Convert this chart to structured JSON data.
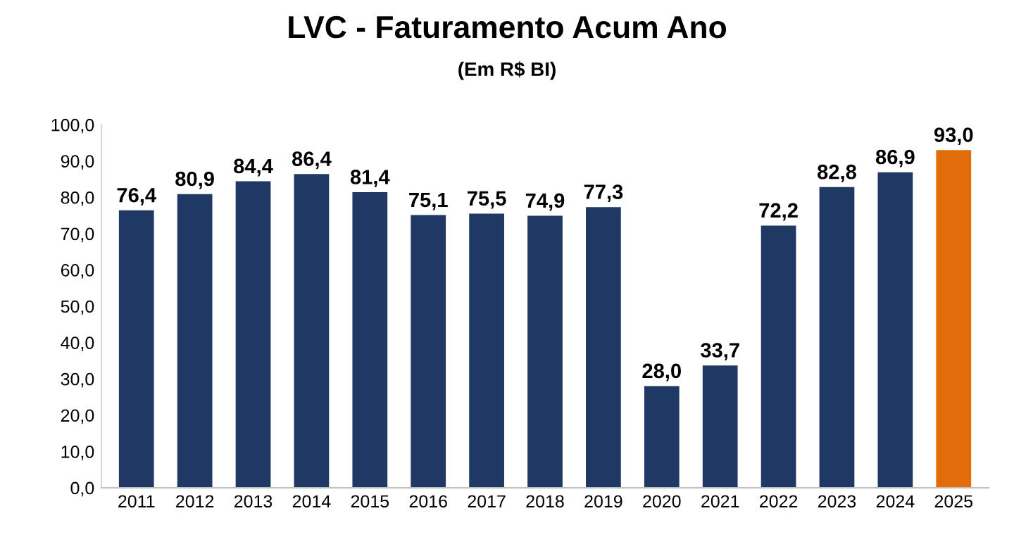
{
  "chart_data": {
    "type": "bar",
    "title": "LVC - Faturamento Acum Ano",
    "subtitle": "(Em R$ BI)",
    "categories": [
      "2011",
      "2012",
      "2013",
      "2014",
      "2015",
      "2016",
      "2017",
      "2018",
      "2019",
      "2020",
      "2021",
      "2022",
      "2023",
      "2024",
      "2025"
    ],
    "values": [
      76.4,
      80.9,
      84.4,
      86.4,
      81.4,
      75.1,
      75.5,
      74.9,
      77.3,
      28.0,
      33.7,
      72.2,
      82.8,
      86.9,
      93.0
    ],
    "colors": [
      "#203864",
      "#203864",
      "#203864",
      "#203864",
      "#203864",
      "#203864",
      "#203864",
      "#203864",
      "#203864",
      "#203864",
      "#203864",
      "#203864",
      "#203864",
      "#203864",
      "#e36c0a"
    ],
    "value_labels": [
      "76,4",
      "80,9",
      "84,4",
      "86,4",
      "81,4",
      "75,1",
      "75,5",
      "74,9",
      "77,3",
      "28,0",
      "33,7",
      "72,2",
      "82,8",
      "86,9",
      "93,0"
    ],
    "ylim": [
      0,
      100
    ],
    "yticks": [
      {
        "value": 0,
        "label": "0,0"
      },
      {
        "value": 10,
        "label": "10,0"
      },
      {
        "value": 20,
        "label": "20,0"
      },
      {
        "value": 30,
        "label": "30,0"
      },
      {
        "value": 40,
        "label": "40,0"
      },
      {
        "value": 50,
        "label": "50,0"
      },
      {
        "value": 60,
        "label": "60,0"
      },
      {
        "value": 70,
        "label": "70,0"
      },
      {
        "value": 80,
        "label": "80,0"
      },
      {
        "value": 90,
        "label": "90,0"
      },
      {
        "value": 100,
        "label": "100,0"
      }
    ],
    "grid": false,
    "legend": false
  }
}
